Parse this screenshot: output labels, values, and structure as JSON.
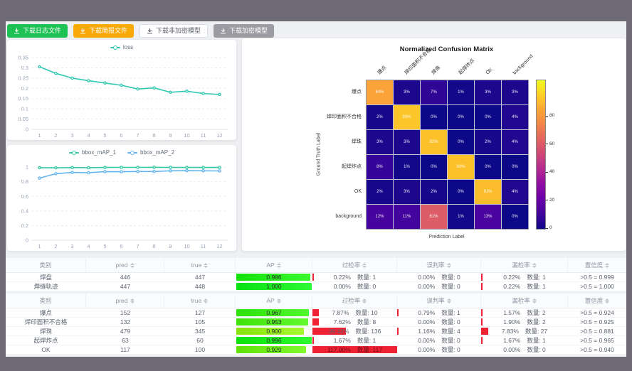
{
  "toolbar": {
    "buttons": [
      {
        "label": "下载日志文件",
        "variant": "green"
      },
      {
        "label": "下载简报文件",
        "variant": "orange"
      },
      {
        "label": "下载非加密模型",
        "variant": "plain"
      },
      {
        "label": "下载加密模型",
        "variant": "gray"
      }
    ]
  },
  "chart_data": [
    {
      "type": "line",
      "name": "loss-chart",
      "x": [
        "1",
        "2",
        "3",
        "4",
        "5",
        "6",
        "7",
        "8",
        "9",
        "10",
        "11",
        "12"
      ],
      "yticks": [
        0,
        0.05,
        0.1,
        0.15,
        0.2,
        0.25,
        0.3,
        0.35
      ],
      "ylim": [
        0,
        0.35
      ],
      "legend_position": "top",
      "grid": true,
      "series": [
        {
          "name": "loss",
          "color": "#2fc8b0",
          "values": [
            0.305,
            0.273,
            0.25,
            0.237,
            0.226,
            0.215,
            0.197,
            0.202,
            0.181,
            0.186,
            0.175,
            0.17
          ]
        }
      ]
    },
    {
      "type": "line",
      "name": "map-chart",
      "x": [
        "1",
        "2",
        "3",
        "4",
        "5",
        "6",
        "7",
        "8",
        "9",
        "10",
        "11",
        "12"
      ],
      "yticks": [
        0,
        0.2,
        0.4,
        0.6,
        0.8,
        1
      ],
      "ylim": [
        0,
        1.06
      ],
      "legend_position": "top",
      "grid": true,
      "series": [
        {
          "name": "bbox_mAP_1",
          "color": "#31c9a0",
          "values": [
            0.993,
            0.99,
            0.995,
            0.992,
            0.996,
            0.997,
            0.997,
            0.998,
            0.997,
            0.996,
            0.996,
            0.996
          ]
        },
        {
          "name": "bbox_mAP_2",
          "color": "#63b4f0",
          "values": [
            0.85,
            0.91,
            0.928,
            0.924,
            0.938,
            0.937,
            0.94,
            0.94,
            0.95,
            0.952,
            0.95,
            0.948
          ]
        }
      ]
    },
    {
      "type": "heatmap",
      "name": "confusion-matrix",
      "title": "Normalized Confusion Matrix",
      "xlabel": "Prediction Label",
      "ylabel": "Ground Truth Label",
      "labels": [
        "爆点",
        "焊印面积不合格",
        "焊珠",
        "起焊炸点",
        "OK",
        "background"
      ],
      "unit": "%",
      "matrix": [
        [
          84,
          3,
          7,
          1,
          3,
          3
        ],
        [
          2,
          93,
          0,
          0,
          0,
          4
        ],
        [
          3,
          3,
          92,
          0,
          2,
          4
        ],
        [
          8,
          1,
          0,
          92,
          0,
          0
        ],
        [
          2,
          3,
          2,
          0,
          91,
          4
        ],
        [
          12,
          11,
          61,
          1,
          13,
          0
        ]
      ],
      "colorbar_ticks": [
        0,
        20,
        40,
        60,
        80
      ],
      "vmax": 106,
      "colormap": "plasma"
    }
  ],
  "tables": [
    {
      "headers": [
        "类别",
        "pred",
        "true",
        "AP",
        "过检率",
        "误判率",
        "漏检率",
        "置信度"
      ],
      "rows": [
        {
          "name": "焊盘",
          "pred": "446",
          "true": "447",
          "ap": "0.986",
          "ap_val": 0.986,
          "over_pct": "0.22%",
          "over_n": "数量: 1",
          "over_val": 0.22,
          "mis_pct": "0.00%",
          "mis_n": "数量: 0",
          "mis_val": 0,
          "miss_pct": "0.22%",
          "miss_n": "数量: 1",
          "miss_val": 0.22,
          "conf": ">0.5 = 0.999"
        },
        {
          "name": "焊缝轨迹",
          "pred": "447",
          "true": "448",
          "ap": "1.000",
          "ap_val": 1.0,
          "over_pct": "0.00%",
          "over_n": "数量: 0",
          "over_val": 0,
          "mis_pct": "0.00%",
          "mis_n": "数量: 0",
          "mis_val": 0,
          "miss_pct": "0.22%",
          "miss_n": "数量: 1",
          "miss_val": 0.22,
          "conf": ">0.5 = 1.000"
        }
      ]
    },
    {
      "headers": [
        "类别",
        "pred",
        "true",
        "AP",
        "过检率",
        "误判率",
        "漏检率",
        "置信度"
      ],
      "rows": [
        {
          "name": "爆点",
          "pred": "152",
          "true": "127",
          "ap": "0.967",
          "ap_val": 0.967,
          "over_pct": "7.87%",
          "over_n": "数量: 10",
          "over_val": 7.87,
          "mis_pct": "0.79%",
          "mis_n": "数量: 1",
          "mis_val": 0.79,
          "miss_pct": "1.57%",
          "miss_n": "数量: 2",
          "miss_val": 1.57,
          "conf": ">0.5 = 0.924"
        },
        {
          "name": "焊印面积不合格",
          "pred": "132",
          "true": "105",
          "ap": "0.953",
          "ap_val": 0.953,
          "over_pct": "7.62%",
          "over_n": "数量: 8",
          "over_val": 7.62,
          "mis_pct": "0.00%",
          "mis_n": "数量: 0",
          "mis_val": 0,
          "miss_pct": "1.90%",
          "miss_n": "数量: 2",
          "miss_val": 1.9,
          "conf": ">0.5 = 0.925"
        },
        {
          "name": "焊珠",
          "pred": "479",
          "true": "345",
          "ap": "0.900",
          "ap_val": 0.9,
          "over_pct": "39.42%",
          "over_n": "数量: 136",
          "over_val": 39.42,
          "mis_pct": "1.16%",
          "mis_n": "数量: 4",
          "mis_val": 1.16,
          "miss_pct": "7.83%",
          "miss_n": "数量: 27",
          "miss_val": 7.83,
          "conf": ">0.5 = 0.881"
        },
        {
          "name": "起焊炸点",
          "pred": "63",
          "true": "60",
          "ap": "0.996",
          "ap_val": 0.996,
          "over_pct": "1.67%",
          "over_n": "数量: 1",
          "over_val": 1.67,
          "mis_pct": "0.00%",
          "mis_n": "数量: 0",
          "mis_val": 0,
          "miss_pct": "1.67%",
          "miss_n": "数量: 1",
          "miss_val": 1.67,
          "conf": ">0.5 = 0.965"
        },
        {
          "name": "OK",
          "pred": "117",
          "true": "100",
          "ap": "0.929",
          "ap_val": 0.929,
          "over_pct": "117.00%",
          "over_n": "数量: 117",
          "over_val": 117.0,
          "mis_pct": "0.00%",
          "mis_n": "数量: 0",
          "mis_val": 0,
          "miss_pct": "0.00%",
          "miss_n": "数量: 0",
          "miss_val": 0,
          "conf": ">0.5 = 0.940"
        }
      ]
    }
  ]
}
